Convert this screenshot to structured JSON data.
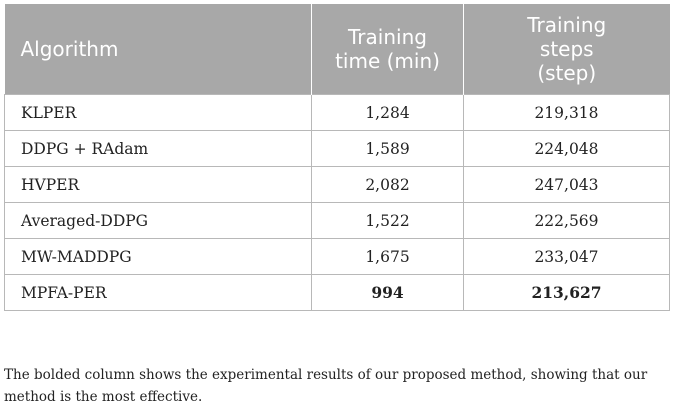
{
  "table": {
    "headers": {
      "algorithm": [
        "Algorithm"
      ],
      "training_time": [
        "Training",
        "time (min)"
      ],
      "training_steps": [
        "Training",
        "steps",
        "(step)"
      ]
    },
    "rows": [
      {
        "algorithm": "KLPER",
        "time": "1,284",
        "steps": "219,318"
      },
      {
        "algorithm": "DDPG + RAdam",
        "time": "1,589",
        "steps": "224,048"
      },
      {
        "algorithm": "HVPER",
        "time": "2,082",
        "steps": "247,043"
      },
      {
        "algorithm": "Averaged-DDPG",
        "time": "1,522",
        "steps": "222,569"
      },
      {
        "algorithm": "MW-MADDPG",
        "time": "1,675",
        "steps": "233,047"
      },
      {
        "algorithm": "MPFA-PER",
        "time": "994",
        "steps": "213,627"
      }
    ]
  },
  "footnote": {
    "line1": "The bolded column shows the experimental results of our proposed method, showing that our",
    "line2": "method is the most effective."
  }
}
